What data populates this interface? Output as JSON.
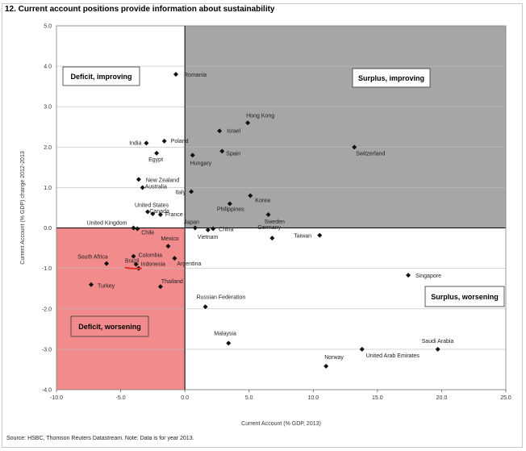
{
  "title": "12. Current account positions provide information about sustainability",
  "source": "Source: HSBC, Thomson Reuters Datastream. Note: Data is for year 2013.",
  "chart_data": {
    "type": "scatter",
    "title": "12. Current account positions provide information about sustainability",
    "xlabel": "Current Account (% GDP, 2013)",
    "ylabel": "Current Account (% GDP) change 2012-2013",
    "xlim": [
      -10,
      25
    ],
    "ylim": [
      -4,
      5
    ],
    "xticks": [
      "-10.0",
      "-5.0",
      "0.0",
      "5.0",
      "10.0",
      "15.0",
      "20.0",
      "25.0"
    ],
    "yticks": [
      "5.0",
      "4.0",
      "3.0",
      "2.0",
      "1.0",
      "0.0",
      "-1.0",
      "-2.0",
      "-3.0",
      "-4.0"
    ],
    "grid": "horizontal",
    "quadrants": [
      {
        "label": "Deficit, improving",
        "fill": "#ffffff"
      },
      {
        "label": "Surplus, improving",
        "fill": "#a6a6a6"
      },
      {
        "label": "Deficit, worsening",
        "fill": "#f28b8b"
      },
      {
        "label": "Surplus, worsening",
        "fill": "#ffffff"
      }
    ],
    "points": [
      {
        "name": "Romania",
        "x": -0.7,
        "y": 3.8
      },
      {
        "name": "Hong Kong",
        "x": 4.9,
        "y": 2.6
      },
      {
        "name": "Israel",
        "x": 2.7,
        "y": 2.4
      },
      {
        "name": "India",
        "x": -3.0,
        "y": 2.1
      },
      {
        "name": "Poland",
        "x": -1.6,
        "y": 2.15
      },
      {
        "name": "Egypt",
        "x": -2.2,
        "y": 1.85
      },
      {
        "name": "Spain",
        "x": 2.9,
        "y": 1.9
      },
      {
        "name": "Hungary",
        "x": 0.6,
        "y": 1.8
      },
      {
        "name": "Switzerland",
        "x": 13.2,
        "y": 2.0
      },
      {
        "name": "New Zealand",
        "x": -3.6,
        "y": 1.2
      },
      {
        "name": "Australia",
        "x": -3.3,
        "y": 1.0
      },
      {
        "name": "Italy",
        "x": 0.5,
        "y": 0.9
      },
      {
        "name": "Korea",
        "x": 5.1,
        "y": 0.8
      },
      {
        "name": "Philippines",
        "x": 3.5,
        "y": 0.6
      },
      {
        "name": "United States",
        "x": -2.9,
        "y": 0.4
      },
      {
        "name": "Canada",
        "x": -2.5,
        "y": 0.35
      },
      {
        "name": "France",
        "x": -1.9,
        "y": 0.33
      },
      {
        "name": "Sweden",
        "x": 6.5,
        "y": 0.33
      },
      {
        "name": "Japan",
        "x": 0.8,
        "y": 0.0
      },
      {
        "name": "China",
        "x": 2.2,
        "y": -0.02
      },
      {
        "name": "Vietnam",
        "x": 1.8,
        "y": -0.05
      },
      {
        "name": "Germany",
        "x": 6.8,
        "y": -0.25
      },
      {
        "name": "Taiwan",
        "x": 10.5,
        "y": -0.18
      },
      {
        "name": "United Kingdom",
        "x": -4.0,
        "y": 0.0
      },
      {
        "name": "Chile",
        "x": -3.7,
        "y": -0.02
      },
      {
        "name": "Mexico",
        "x": -1.3,
        "y": -0.45
      },
      {
        "name": "Colombia",
        "x": -4.0,
        "y": -0.7
      },
      {
        "name": "Indonesia",
        "x": -3.8,
        "y": -0.9
      },
      {
        "name": "Argentina",
        "x": -0.8,
        "y": -0.75
      },
      {
        "name": "South Africa",
        "x": -6.1,
        "y": -0.88
      },
      {
        "name": "Turkey",
        "x": -7.3,
        "y": -1.4
      },
      {
        "name": "Brazil",
        "x": -3.6,
        "y": -1.0
      },
      {
        "name": "Thailand",
        "x": -1.9,
        "y": -1.45
      },
      {
        "name": "Singapore",
        "x": 17.4,
        "y": -1.17
      },
      {
        "name": "Russian Federation",
        "x": 1.6,
        "y": -1.95
      },
      {
        "name": "Malaysia",
        "x": 3.4,
        "y": -2.85
      },
      {
        "name": "Norway",
        "x": 11.0,
        "y": -3.42
      },
      {
        "name": "United Arab Emirates",
        "x": 13.8,
        "y": -3.0
      },
      {
        "name": "Saudi Arabia",
        "x": 19.7,
        "y": -3.0
      }
    ]
  }
}
